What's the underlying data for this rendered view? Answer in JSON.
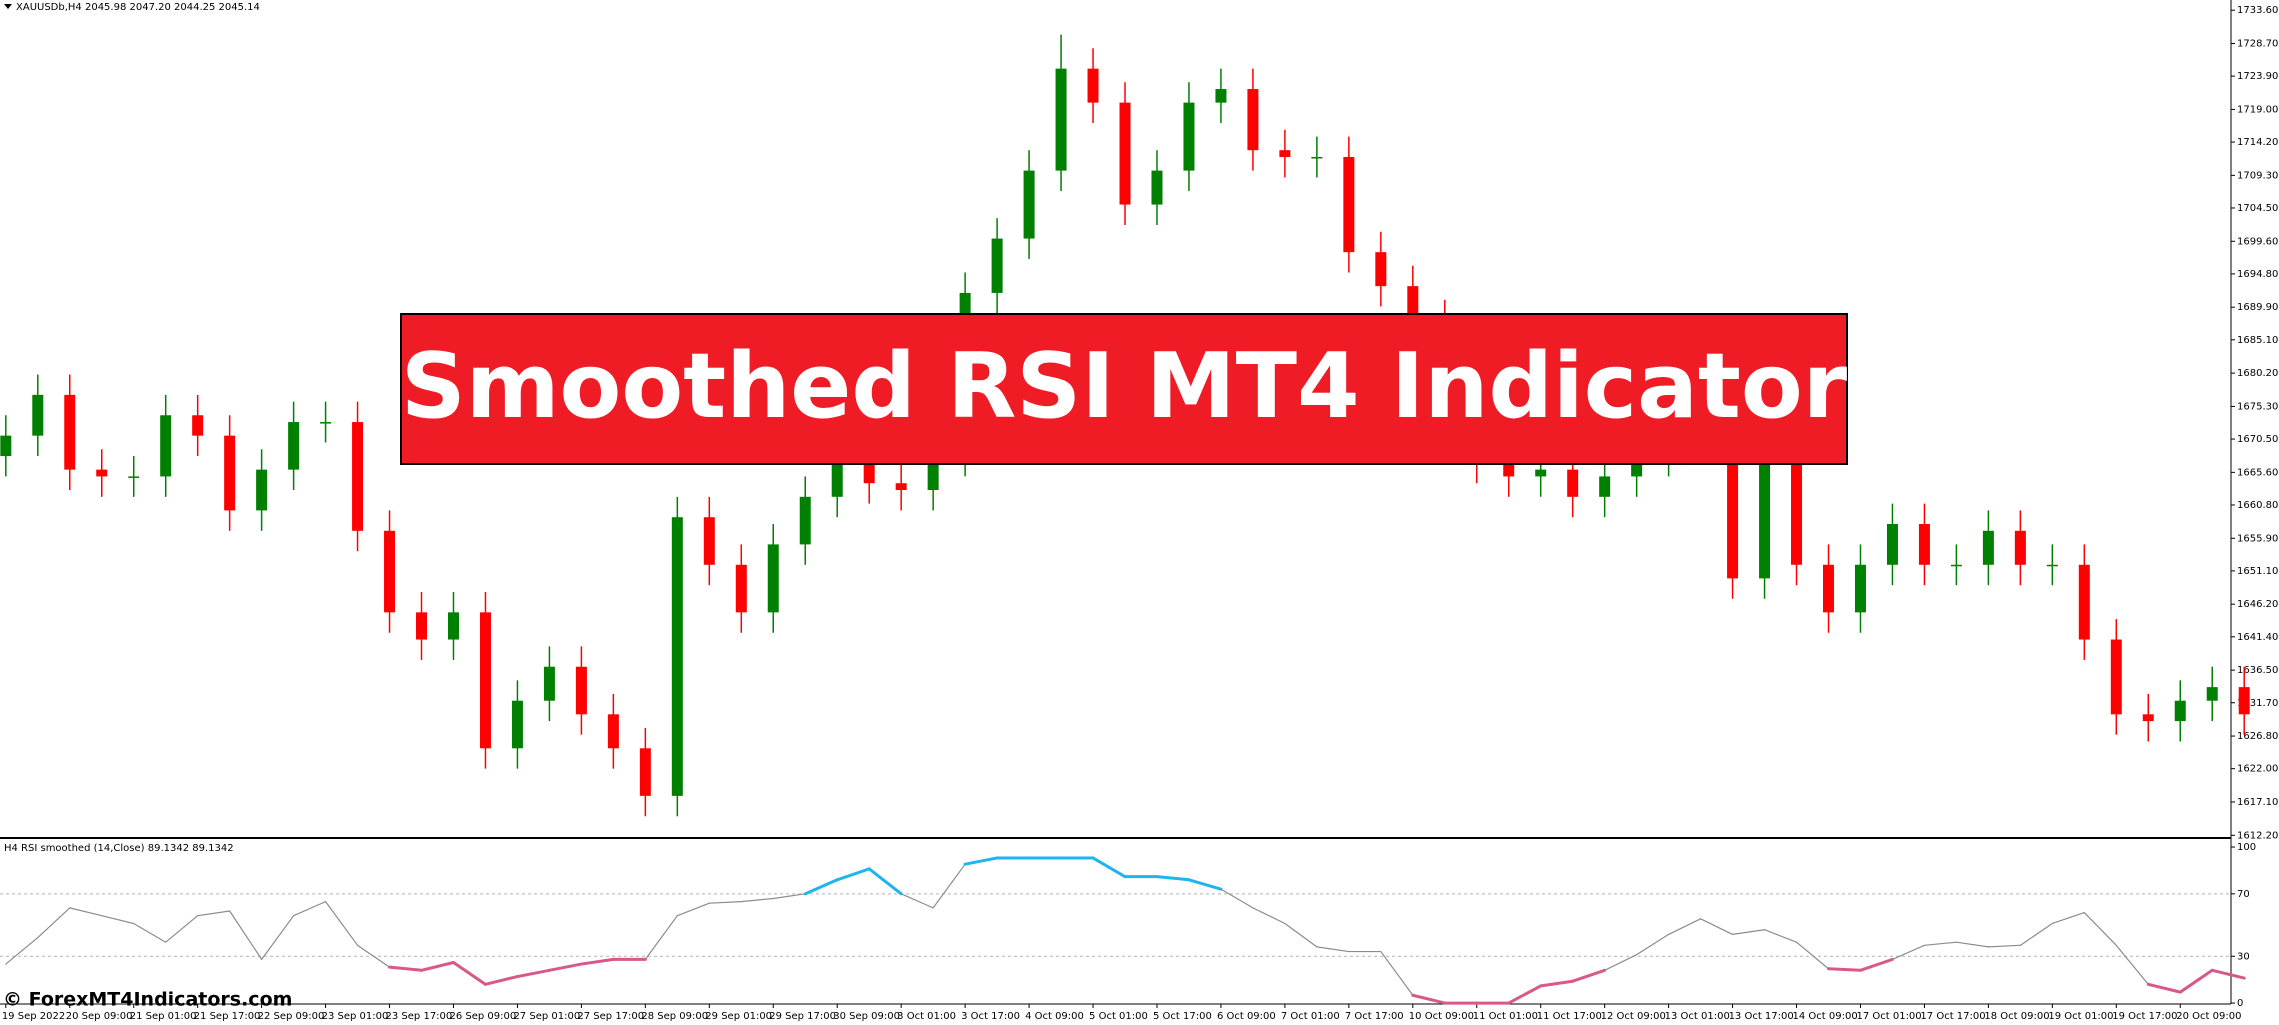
{
  "banner": "Smoothed RSI MT4 Indicator",
  "watermark": "© ForexMT4Indicators.com",
  "chart_data": [
    {
      "type": "candlestick",
      "title": "XAUUSDb,H4  2045.98 2047.20 2044.25 2045.14",
      "up_color": "#008000",
      "down_color": "#ff0000",
      "categories": [
        "19 Sep 2022",
        null,
        "20 Sep 09:00",
        null,
        "21 Sep 01:00",
        null,
        "21 Sep 17:00",
        null,
        "22 Sep 09:00",
        null,
        "23 Sep 01:00",
        null,
        "23 Sep 17:00",
        null,
        "26 Sep 09:00",
        null,
        "27 Sep 01:00",
        null,
        "27 Sep 17:00",
        null,
        "28 Sep 09:00",
        null,
        "29 Sep 01:00",
        null,
        "29 Sep 17:00",
        null,
        "30 Sep 09:00",
        null,
        "3 Oct 01:00",
        null,
        "3 Oct 17:00",
        null,
        "4 Oct 09:00",
        null,
        "5 Oct 01:00",
        null,
        "5 Oct 17:00",
        null,
        "6 Oct 09:00",
        null,
        "7 Oct 01:00",
        null,
        "7 Oct 17:00",
        null,
        "10 Oct 09:00",
        null,
        "11 Oct 01:00",
        null,
        "11 Oct 17:00",
        null,
        "12 Oct 09:00",
        null,
        "13 Oct 01:00",
        null,
        "13 Oct 17:00",
        null,
        "14 Oct 09:00",
        null,
        "17 Oct 01:00",
        null,
        "17 Oct 17:00",
        null,
        "18 Oct 09:00",
        null,
        "19 Oct 01:00",
        null,
        "19 Oct 17:00",
        null,
        "20 Oct 09:00",
        null,
        null
      ],
      "open": [
        1668,
        1671,
        1677,
        1666,
        1665,
        1665,
        1674,
        1671,
        1660,
        1666,
        1673,
        1673,
        1657,
        1645,
        1641,
        1645,
        1625,
        1632,
        1637,
        1630,
        1625,
        1618,
        1659,
        1652,
        1645,
        1655,
        1662,
        1667,
        1664,
        1663,
        1668,
        1692,
        1700,
        1710,
        1725,
        1720,
        1705,
        1710,
        1720,
        1722,
        1713,
        1712,
        1712,
        1698,
        1693,
        1688,
        1670,
        1667,
        1665,
        1666,
        1662,
        1665,
        1668,
        1672,
        1670,
        1650,
        1667,
        1652,
        1645,
        1652,
        1658,
        1652,
        1652,
        1657,
        1652,
        1652,
        1641,
        1630,
        1629,
        1632,
        1634
      ],
      "high": [
        1674,
        1680,
        1680,
        1669,
        1668,
        1677,
        1677,
        1674,
        1669,
        1676,
        1676,
        1676,
        1660,
        1648,
        1648,
        1648,
        1635,
        1640,
        1640,
        1633,
        1628,
        1662,
        1662,
        1655,
        1658,
        1665,
        1670,
        1670,
        1667,
        1671,
        1695,
        1703,
        1713,
        1730,
        1728,
        1723,
        1713,
        1723,
        1725,
        1725,
        1716,
        1715,
        1715,
        1701,
        1696,
        1691,
        1673,
        1670,
        1669,
        1669,
        1668,
        1671,
        1675,
        1675,
        1673,
        1670,
        1670,
        1655,
        1655,
        1661,
        1661,
        1655,
        1660,
        1660,
        1655,
        1655,
        1644,
        1633,
        1635,
        1637,
        1637
      ],
      "low": [
        1665,
        1668,
        1663,
        1662,
        1662,
        1662,
        1668,
        1657,
        1657,
        1663,
        1670,
        1654,
        1642,
        1638,
        1638,
        1622,
        1622,
        1629,
        1627,
        1622,
        1615,
        1615,
        1649,
        1642,
        1642,
        1652,
        1659,
        1661,
        1660,
        1660,
        1665,
        1689,
        1697,
        1707,
        1717,
        1702,
        1702,
        1707,
        1717,
        1710,
        1709,
        1709,
        1695,
        1690,
        1685,
        1667,
        1664,
        1662,
        1662,
        1659,
        1659,
        1662,
        1665,
        1667,
        1647,
        1647,
        1649,
        1642,
        1642,
        1649,
        1649,
        1649,
        1649,
        1649,
        1649,
        1638,
        1627,
        1626,
        1626,
        1629,
        1627
      ],
      "close": [
        1671,
        1677,
        1666,
        1665,
        1665,
        1674,
        1671,
        1660,
        1666,
        1673,
        1673,
        1657,
        1645,
        1641,
        1645,
        1625,
        1632,
        1637,
        1630,
        1625,
        1618,
        1659,
        1652,
        1645,
        1655,
        1662,
        1667,
        1664,
        1663,
        1668,
        1692,
        1700,
        1710,
        1725,
        1720,
        1705,
        1710,
        1720,
        1722,
        1713,
        1712,
        1712,
        1698,
        1693,
        1688,
        1670,
        1667,
        1665,
        1666,
        1662,
        1665,
        1668,
        1672,
        1670,
        1650,
        1667,
        1652,
        1645,
        1652,
        1658,
        1652,
        1652,
        1657,
        1652,
        1652,
        1641,
        1630,
        1629,
        1632,
        1634,
        1630
      ],
      "ylim": [
        1611.8,
        1735.1
      ],
      "yticks": [
        {
          "value": 1733.6,
          "label": "1733.60"
        },
        {
          "value": 1728.7,
          "label": "1728.70"
        },
        {
          "value": 1723.9,
          "label": "1723.90"
        },
        {
          "value": 1719,
          "label": "1719.00"
        },
        {
          "value": 1714.2,
          "label": "1714.20"
        },
        {
          "value": 1709.3,
          "label": "1709.30"
        },
        {
          "value": 1704.5,
          "label": "1704.50"
        },
        {
          "value": 1699.6,
          "label": "1699.60"
        },
        {
          "value": 1694.8,
          "label": "1694.80"
        },
        {
          "value": 1689.9,
          "label": "1689.90"
        },
        {
          "value": 1685.1,
          "label": "1685.10"
        },
        {
          "value": 1680.2,
          "label": "1680.20"
        },
        {
          "value": 1675.3,
          "label": "1675.30"
        },
        {
          "value": 1670.5,
          "label": "1670.50"
        },
        {
          "value": 1665.6,
          "label": "1665.60"
        },
        {
          "value": 1660.8,
          "label": "1660.80"
        },
        {
          "value": 1655.9,
          "label": "1655.90"
        },
        {
          "value": 1651.1,
          "label": "1651.10"
        },
        {
          "value": 1646.2,
          "label": "1646.20"
        },
        {
          "value": 1641.4,
          "label": "1641.40"
        },
        {
          "value": 1636.5,
          "label": "1636.50"
        },
        {
          "value": 1631.7,
          "label": "1631.70"
        },
        {
          "value": 1626.8,
          "label": "1626.80"
        },
        {
          "value": 1622,
          "label": "1622.00"
        },
        {
          "value": 1617.1,
          "label": "1617.10"
        },
        {
          "value": 1612.2,
          "label": "1612.20"
        }
      ]
    },
    {
      "type": "line",
      "title": "H4 RSI smoothed (14,Close) 89.1342 89.1342",
      "ylim": [
        -0.6,
        104.5
      ],
      "yticks": [
        0,
        30,
        70,
        100
      ],
      "levels": [
        70,
        30
      ],
      "series": [
        {
          "color": "#8c8c8c",
          "up_color": "#1eb4f0",
          "down_color": "#d9588a",
          "values": [
            25,
            42,
            61,
            56,
            51,
            39,
            56,
            59,
            28,
            56,
            65,
            37,
            23,
            21,
            26,
            12,
            17,
            21,
            25,
            28,
            28,
            56,
            64,
            65,
            67,
            70,
            79,
            86,
            70,
            61,
            89,
            93,
            93,
            93,
            93,
            81,
            81,
            79,
            73,
            61,
            51,
            36,
            33,
            33,
            5,
            0,
            0,
            0,
            11,
            14,
            21,
            31,
            44,
            54,
            44,
            47,
            39,
            22,
            21,
            28,
            37,
            39,
            36,
            37,
            51,
            58,
            37,
            12,
            7,
            21,
            16
          ]
        }
      ]
    }
  ]
}
